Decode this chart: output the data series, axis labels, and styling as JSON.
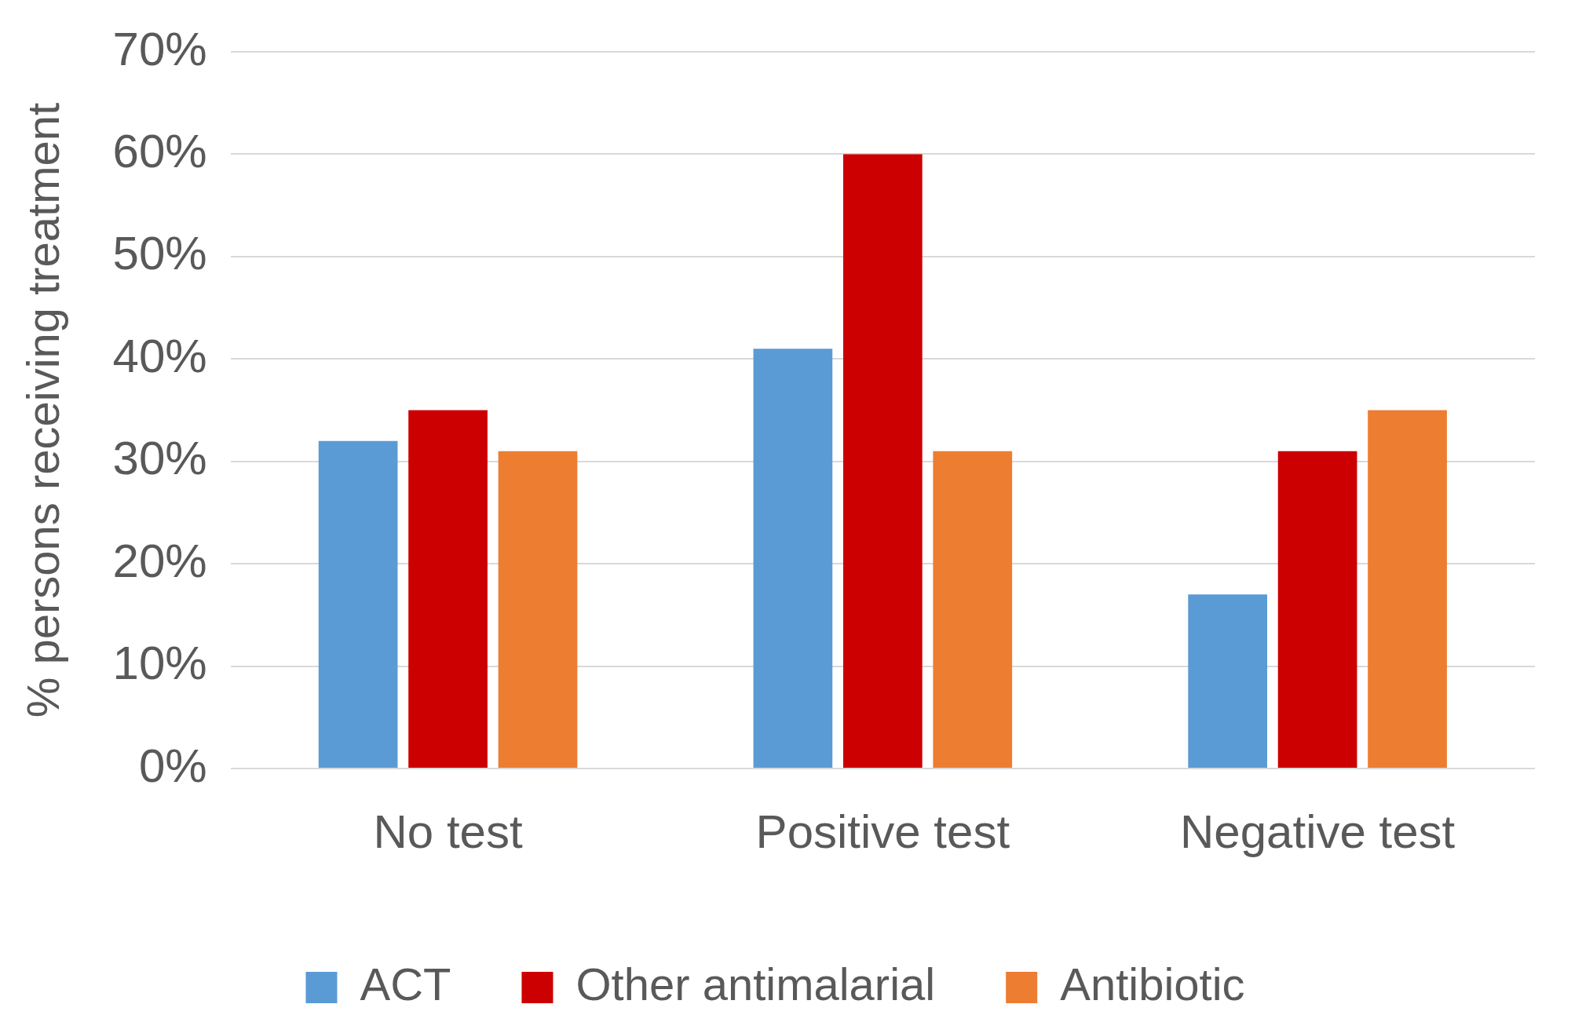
{
  "chart_data": {
    "type": "bar",
    "ylabel": "% persons receiving treatment",
    "categories": [
      "No test",
      "Positive test",
      "Negative test"
    ],
    "series": [
      {
        "name": "ACT",
        "color": "#5b9bd5",
        "values": [
          32,
          41,
          17
        ]
      },
      {
        "name": "Other antimalarial",
        "color": "#cc0000",
        "values": [
          35,
          60,
          31
        ]
      },
      {
        "name": "Antibiotic",
        "color": "#ed7d31",
        "values": [
          31,
          31,
          35
        ]
      }
    ],
    "ylim": [
      0,
      70
    ],
    "yticks": [
      {
        "value": 0,
        "label": "0%"
      },
      {
        "value": 10,
        "label": "10%"
      },
      {
        "value": 20,
        "label": "20%"
      },
      {
        "value": 30,
        "label": "30%"
      },
      {
        "value": 40,
        "label": "40%"
      },
      {
        "value": 50,
        "label": "50%"
      },
      {
        "value": 60,
        "label": "60%"
      },
      {
        "value": 70,
        "label": "70%"
      }
    ],
    "grid": "y",
    "legend": "bottom"
  }
}
